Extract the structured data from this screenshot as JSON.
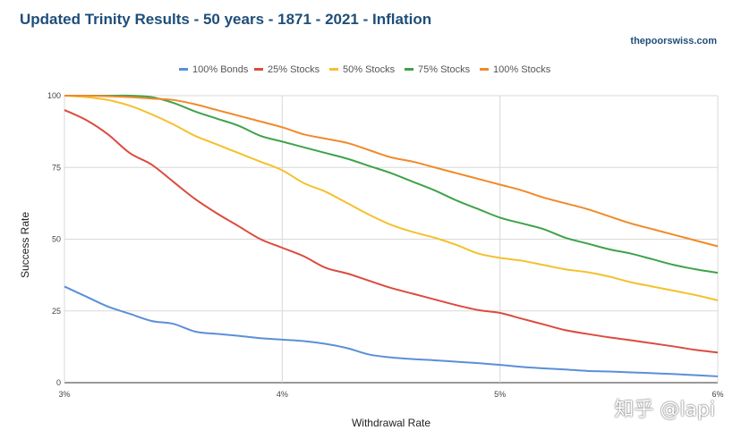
{
  "header": {
    "title": "Updated Trinity Results - 50 years - 1871 - 2021 - Inflation",
    "site": "thepoorswiss.com"
  },
  "watermark": "知乎 @lapi",
  "chart_data": {
    "type": "line",
    "title": "Updated Trinity Results - 50 years - 1871 - 2021 - Inflation",
    "xlabel": "Withdrawal Rate",
    "ylabel": "Success Rate",
    "xlim": [
      3,
      6
    ],
    "ylim": [
      0,
      100
    ],
    "x_ticks": [
      {
        "value": 3,
        "label": "3%"
      },
      {
        "value": 4,
        "label": "4%"
      },
      {
        "value": 5,
        "label": "5%"
      },
      {
        "value": 6,
        "label": "6%"
      }
    ],
    "y_ticks": [
      {
        "value": 0,
        "label": "0"
      },
      {
        "value": 25,
        "label": "25"
      },
      {
        "value": 50,
        "label": "50"
      },
      {
        "value": 75,
        "label": "75"
      },
      {
        "value": 100,
        "label": "100"
      }
    ],
    "legend_position": "top",
    "x": [
      3.0,
      3.1,
      3.2,
      3.3,
      3.4,
      3.5,
      3.6,
      3.7,
      3.8,
      3.9,
      4.0,
      4.1,
      4.2,
      4.3,
      4.4,
      4.5,
      4.6,
      4.7,
      4.8,
      4.9,
      5.0,
      5.1,
      5.2,
      5.3,
      5.4,
      5.5,
      5.6,
      5.7,
      5.8,
      5.9,
      6.0
    ],
    "series": [
      {
        "name": "100% Bonds",
        "color": "#5b8fd8",
        "values": [
          33.5,
          30,
          26.5,
          24,
          21.5,
          20.5,
          17.8,
          17,
          16.3,
          15.5,
          15,
          14.5,
          13.5,
          12,
          9.8,
          8.8,
          8.2,
          7.8,
          7.3,
          6.8,
          6.2,
          5.5,
          5,
          4.6,
          4.1,
          3.9,
          3.6,
          3.3,
          3.0,
          2.6,
          2.2
        ]
      },
      {
        "name": "25% Stocks",
        "color": "#dc4b3f",
        "values": [
          95,
          91.5,
          86.5,
          80,
          76,
          70,
          64,
          59,
          54.5,
          50,
          47,
          44,
          40,
          38,
          35.5,
          33,
          31,
          29,
          27,
          25.3,
          24.3,
          22.3,
          20.3,
          18.3,
          17,
          15.8,
          14.8,
          13.7,
          12.6,
          11.4,
          10.5
        ]
      },
      {
        "name": "50% Stocks",
        "color": "#f5c02c",
        "values": [
          100,
          99.5,
          98.5,
          96.5,
          93.5,
          90,
          86,
          83,
          80,
          77,
          74,
          69.5,
          66.5,
          62.5,
          58.5,
          55,
          52.5,
          50.5,
          48,
          45,
          43.5,
          42.5,
          41,
          39.5,
          38.5,
          37,
          35,
          33.5,
          32,
          30.5,
          28.7
        ]
      },
      {
        "name": "75% Stocks",
        "color": "#3fa24a",
        "values": [
          100,
          100,
          100,
          100,
          99.5,
          97.5,
          94.5,
          92,
          89.5,
          86,
          84,
          82,
          80,
          78,
          75.5,
          73,
          70,
          67,
          63.5,
          60.5,
          57.5,
          55.5,
          53.5,
          50.5,
          48.5,
          46.5,
          45,
          43,
          41,
          39.5,
          38.3
        ]
      },
      {
        "name": "100% Stocks",
        "color": "#f08a2a",
        "values": [
          100,
          100,
          99.8,
          99.5,
          99,
          98.5,
          97,
          95,
          93,
          91,
          89,
          86.5,
          85,
          83.5,
          81,
          78.5,
          77,
          75,
          73,
          71,
          69,
          67,
          64.5,
          62.5,
          60.5,
          58,
          55.5,
          53.5,
          51.5,
          49.5,
          47.5
        ]
      }
    ]
  }
}
